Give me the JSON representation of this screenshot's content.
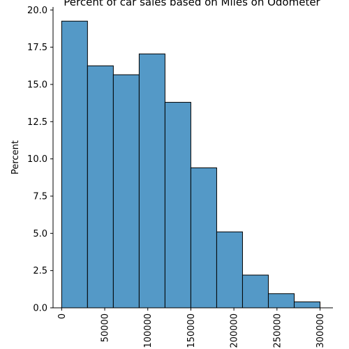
{
  "chart_data": {
    "type": "bar",
    "title": "Percent of car sales based on Miles on Odometer",
    "xlabel": "",
    "ylabel": "Percent",
    "bin_edges": [
      0,
      30000,
      60000,
      90000,
      120000,
      150000,
      180000,
      210000,
      240000,
      270000,
      300000
    ],
    "values": [
      19.25,
      16.25,
      15.65,
      17.05,
      13.8,
      9.4,
      5.1,
      2.2,
      0.95,
      0.4
    ],
    "xlim": [
      -10000,
      315000
    ],
    "ylim": [
      0,
      20.2
    ],
    "x_ticks": [
      0,
      50000,
      100000,
      150000,
      200000,
      250000,
      300000
    ],
    "x_tick_labels": [
      "0",
      "50000",
      "100000",
      "150000",
      "200000",
      "250000",
      "300000"
    ],
    "y_ticks": [
      0,
      2.5,
      5,
      7.5,
      10,
      12.5,
      15,
      17.5,
      20
    ],
    "y_tick_labels": [
      "0.0",
      "2.5",
      "5.0",
      "7.5",
      "10.0",
      "12.5",
      "15.0",
      "17.5",
      "20.0"
    ],
    "bar_color": "#5499c7",
    "edge_color": "#000000",
    "grid": false,
    "legend": "none"
  }
}
